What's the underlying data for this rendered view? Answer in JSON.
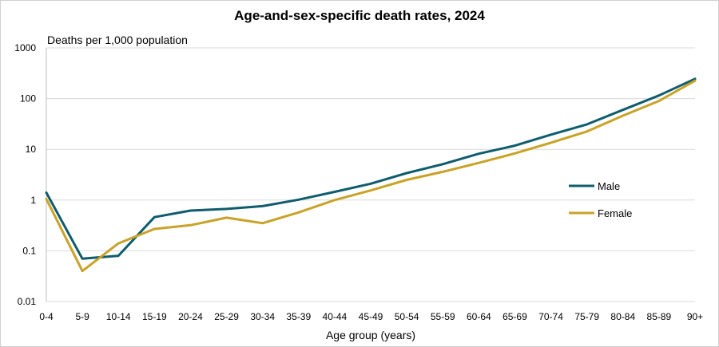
{
  "chart_data": {
    "type": "line",
    "title": "Age-and-sex-specific death rates, 2024",
    "ylabel": "Deaths per 1,000 population",
    "xlabel": "Age group (years)",
    "yscale": "log",
    "ylim": [
      0.01,
      1000
    ],
    "yticks": [
      "0.01",
      "0.1",
      "1",
      "10",
      "100",
      "1000"
    ],
    "yticks_values": [
      0.01,
      0.1,
      1,
      10,
      100,
      1000
    ],
    "grid": "horizontal",
    "legend": "right",
    "categories": [
      "0-4",
      "5-9",
      "10-14",
      "15-19",
      "20-24",
      "25-29",
      "30-34",
      "35-39",
      "40-44",
      "45-49",
      "50-54",
      "55-59",
      "60-64",
      "65-69",
      "70-74",
      "75-79",
      "80-84",
      "85-89",
      "90+"
    ],
    "series": [
      {
        "name": "Male",
        "color": "#0e5c6e",
        "values": [
          1.4,
          0.07,
          0.08,
          0.46,
          0.62,
          0.67,
          0.76,
          1.02,
          1.45,
          2.1,
          3.4,
          5.1,
          8.2,
          11.8,
          19.5,
          31,
          60,
          115,
          245
        ]
      },
      {
        "name": "Female",
        "color": "#c9a227",
        "values": [
          1.05,
          0.04,
          0.14,
          0.27,
          0.32,
          0.45,
          0.35,
          0.57,
          1.0,
          1.55,
          2.5,
          3.6,
          5.4,
          8.3,
          13.5,
          22.5,
          46,
          90,
          225
        ]
      }
    ]
  }
}
